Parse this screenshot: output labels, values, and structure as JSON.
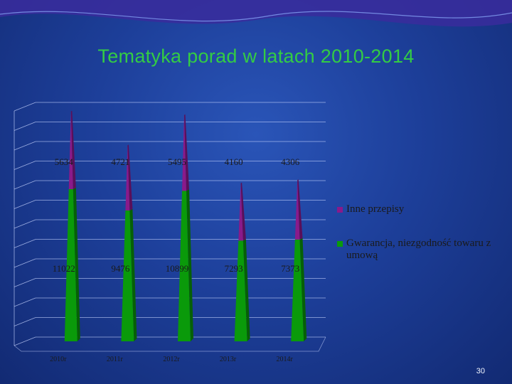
{
  "slide": {
    "title": "Tematyka porad w latach 2010-2014",
    "page_number": "30"
  },
  "colors": {
    "top_series": "#8a1a8a",
    "bottom_series": "#0a9a0a",
    "label_text": "#1a1a1a"
  },
  "chart_data": {
    "type": "bar",
    "stacked": true,
    "shape": "3d-cone",
    "categories": [
      "2010r",
      "2011r",
      "2012r",
      "2013r",
      "2014r"
    ],
    "series": [
      {
        "name": "Gwarancja, niezgodność towaru z umową",
        "values": [
          11022,
          9476,
          10899,
          7293,
          7373
        ]
      },
      {
        "name": "Inne przepisy",
        "values": [
          5634,
          4721,
          5495,
          4160,
          4306
        ]
      }
    ],
    "ylim": [
      0,
      17000
    ],
    "grid": true,
    "legend": "right"
  }
}
